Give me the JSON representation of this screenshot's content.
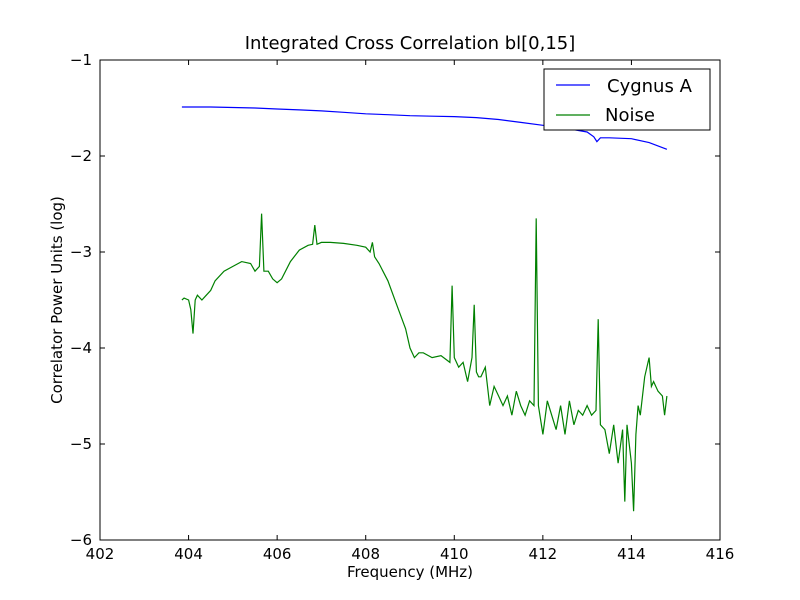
{
  "chart_data": {
    "type": "line",
    "title": "Integrated Cross Correlation bl[0,15]",
    "xlabel": "Frequency (MHz)",
    "ylabel": "Correlator Power Units (log)",
    "xlim": [
      402,
      416
    ],
    "ylim": [
      -6,
      -1
    ],
    "xticks": [
      402,
      404,
      406,
      408,
      410,
      412,
      414,
      416
    ],
    "yticks": [
      -6,
      -5,
      -4,
      -3,
      -2,
      -1
    ],
    "xtick_labels": [
      "402",
      "404",
      "406",
      "408",
      "410",
      "412",
      "414",
      "416"
    ],
    "ytick_labels": [
      "−6",
      "−5",
      "−4",
      "−3",
      "−2",
      "−1"
    ],
    "grid": false,
    "legend_position": "upper right",
    "series": [
      {
        "name": "Cygnus A",
        "color": "#0000ff",
        "x": [
          403.85,
          404.5,
          405.0,
          405.5,
          406.0,
          406.5,
          407.0,
          407.5,
          408.0,
          408.5,
          409.0,
          409.5,
          410.0,
          410.5,
          411.0,
          411.5,
          412.0,
          412.5,
          413.0,
          413.15,
          413.22,
          413.3,
          413.5,
          414.0,
          414.4,
          414.8
        ],
        "y": [
          -1.49,
          -1.49,
          -1.495,
          -1.5,
          -1.51,
          -1.52,
          -1.53,
          -1.545,
          -1.56,
          -1.57,
          -1.58,
          -1.585,
          -1.59,
          -1.6,
          -1.62,
          -1.65,
          -1.68,
          -1.71,
          -1.75,
          -1.8,
          -1.85,
          -1.81,
          -1.81,
          -1.82,
          -1.86,
          -1.93
        ]
      },
      {
        "name": "Noise",
        "color": "#008000",
        "x": [
          403.85,
          403.9,
          404.0,
          404.05,
          404.1,
          404.15,
          404.2,
          404.3,
          404.4,
          404.5,
          404.6,
          404.8,
          405.0,
          405.2,
          405.4,
          405.5,
          405.6,
          405.65,
          405.7,
          405.8,
          405.9,
          406.0,
          406.1,
          406.3,
          406.5,
          406.7,
          406.8,
          406.85,
          406.9,
          407.0,
          407.2,
          407.5,
          407.8,
          408.0,
          408.1,
          408.15,
          408.2,
          408.3,
          408.5,
          408.7,
          408.9,
          409.0,
          409.1,
          409.2,
          409.3,
          409.5,
          409.7,
          409.9,
          409.95,
          410.0,
          410.05,
          410.1,
          410.2,
          410.3,
          410.4,
          410.45,
          410.5,
          410.55,
          410.6,
          410.7,
          410.8,
          410.9,
          411.0,
          411.1,
          411.2,
          411.3,
          411.4,
          411.5,
          411.6,
          411.7,
          411.8,
          411.85,
          411.9,
          412.0,
          412.1,
          412.2,
          412.3,
          412.4,
          412.5,
          412.6,
          412.7,
          412.8,
          412.9,
          413.0,
          413.1,
          413.2,
          413.25,
          413.3,
          413.4,
          413.5,
          413.6,
          413.7,
          413.8,
          413.85,
          413.9,
          414.0,
          414.05,
          414.1,
          414.15,
          414.2,
          414.3,
          414.4,
          414.45,
          414.5,
          414.6,
          414.7,
          414.75,
          414.8
        ],
        "y": [
          -3.5,
          -3.48,
          -3.5,
          -3.6,
          -3.85,
          -3.5,
          -3.45,
          -3.5,
          -3.45,
          -3.4,
          -3.3,
          -3.2,
          -3.15,
          -3.1,
          -3.12,
          -3.2,
          -3.15,
          -2.6,
          -3.2,
          -3.2,
          -3.28,
          -3.32,
          -3.28,
          -3.1,
          -2.98,
          -2.93,
          -2.92,
          -2.72,
          -2.92,
          -2.9,
          -2.9,
          -2.91,
          -2.93,
          -2.95,
          -3.0,
          -2.9,
          -3.05,
          -3.12,
          -3.3,
          -3.55,
          -3.8,
          -4.0,
          -4.1,
          -4.05,
          -4.05,
          -4.1,
          -4.08,
          -4.15,
          -3.35,
          -4.1,
          -4.15,
          -4.2,
          -4.15,
          -4.35,
          -4.1,
          -3.55,
          -4.25,
          -4.3,
          -4.3,
          -4.2,
          -4.6,
          -4.4,
          -4.5,
          -4.6,
          -4.5,
          -4.7,
          -4.45,
          -4.6,
          -4.7,
          -4.55,
          -4.6,
          -2.65,
          -4.6,
          -4.9,
          -4.55,
          -4.7,
          -4.85,
          -4.6,
          -4.9,
          -4.55,
          -4.8,
          -4.65,
          -4.7,
          -4.6,
          -4.7,
          -4.65,
          -3.7,
          -4.8,
          -4.85,
          -5.1,
          -4.8,
          -5.2,
          -4.85,
          -5.6,
          -4.8,
          -5.2,
          -5.7,
          -4.9,
          -4.6,
          -4.7,
          -4.3,
          -4.1,
          -4.4,
          -4.35,
          -4.45,
          -4.5,
          -4.7,
          -4.5
        ]
      }
    ]
  }
}
